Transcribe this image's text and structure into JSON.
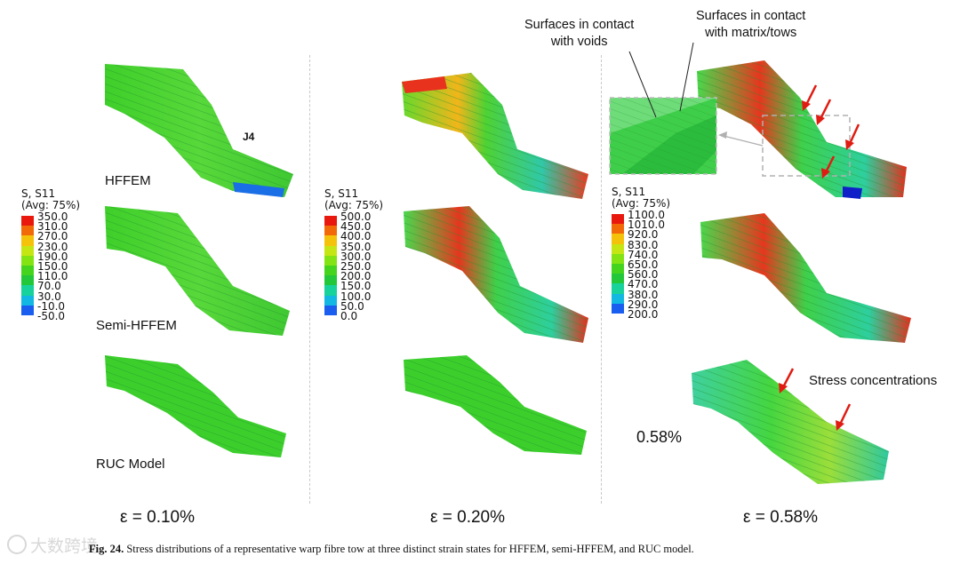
{
  "panels": [
    {
      "strain_label": "ε = 0.10%",
      "legend": {
        "title": "S, S11",
        "subtitle": "(Avg: 75%)",
        "values": [
          "350.0",
          "310.0",
          "270.0",
          "230.0",
          "190.0",
          "150.0",
          "110.0",
          "70.0",
          "30.0",
          "-10.0",
          "-50.0"
        ]
      }
    },
    {
      "strain_label": "ε = 0.20%",
      "legend": {
        "title": "S, S11",
        "subtitle": "(Avg: 75%)",
        "values": [
          "500.0",
          "450.0",
          "400.0",
          "350.0",
          "300.0",
          "250.0",
          "200.0",
          "150.0",
          "100.0",
          "50.0",
          "0.0"
        ]
      }
    },
    {
      "strain_label": "ε = 0.58%",
      "legend": {
        "title": "S, S11",
        "subtitle": "(Avg: 75%)",
        "values": [
          "1100.0",
          "1010.0",
          "920.0",
          "830.0",
          "740.0",
          "650.0",
          "560.0",
          "470.0",
          "380.0",
          "290.0",
          "200.0"
        ]
      }
    }
  ],
  "legend_colors": [
    "#e8180f",
    "#f26a08",
    "#f5c20a",
    "#c6e614",
    "#84e312",
    "#45d41e",
    "#22c83a",
    "#17d29a",
    "#12b8e2",
    "#1a5ef0",
    "#1010d8"
  ],
  "model_labels": {
    "hffem": "HFFEM",
    "semi": "Semi-HFFEM",
    "ruc": "RUC Model"
  },
  "annotations": {
    "j4": "J4",
    "contact_voids": [
      "Surfaces in contact",
      "with voids"
    ],
    "contact_matrix": [
      "Surfaces in contact",
      "with matrix/tows"
    ],
    "stress_concentrations": "Stress concentrations",
    "strain_small": "0.58%"
  },
  "caption": {
    "fig_label": "Fig. 24.",
    "text": "Stress distributions of a representative warp fibre tow at three distinct strain states for HFFEM, semi-HFFEM, and RUC model."
  },
  "watermark": "大数跨境"
}
